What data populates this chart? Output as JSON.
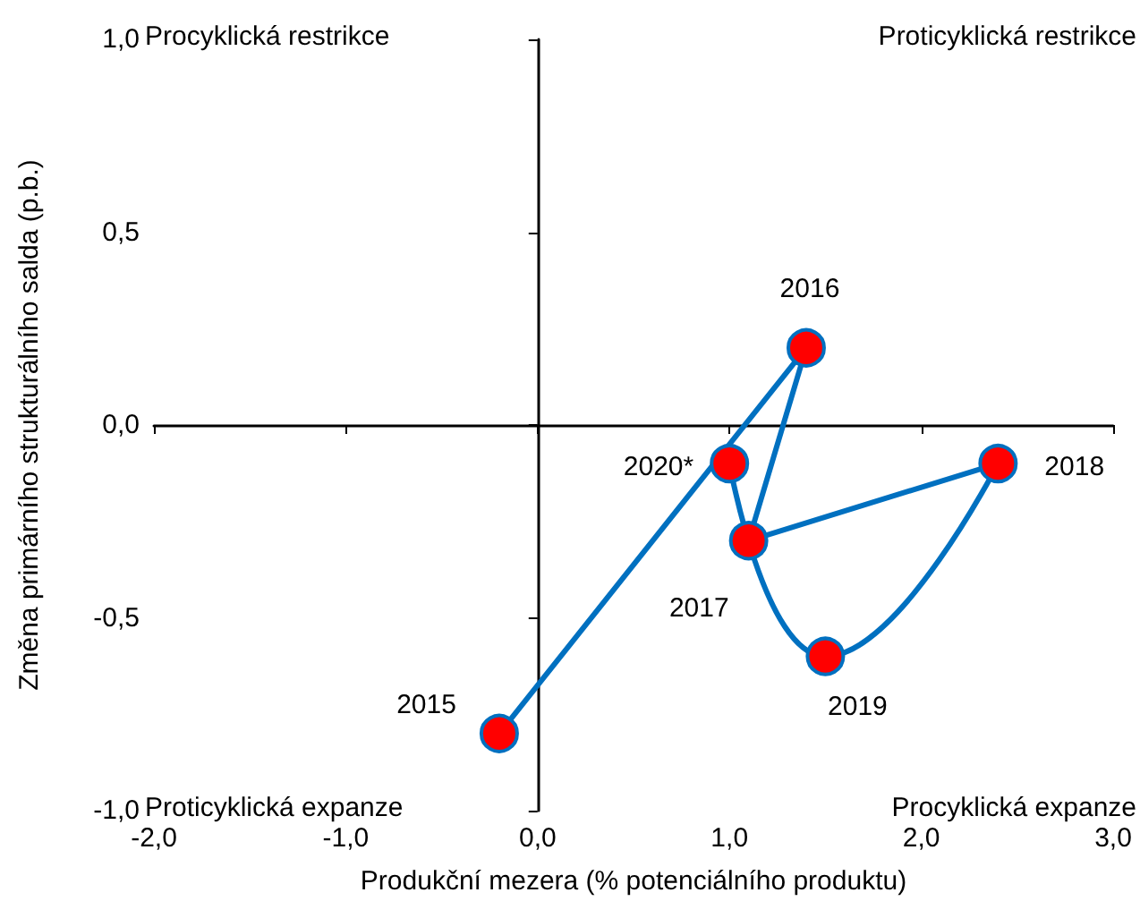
{
  "chart_data": {
    "type": "line",
    "xlabel": "Produkční mezera (% potenciálního produktu)",
    "ylabel": "Změna primárního strukturálního salda (p.b.)",
    "xlim": [
      -2,
      3
    ],
    "xticks": [
      {
        "value": -2,
        "label": "-2,0"
      },
      {
        "value": -1,
        "label": "-1,0"
      },
      {
        "value": 0,
        "label": "0,0"
      },
      {
        "value": 1,
        "label": "1,0"
      },
      {
        "value": 2,
        "label": "2,0"
      },
      {
        "value": 3,
        "label": "3,0"
      }
    ],
    "ylim": [
      -1,
      1
    ],
    "yticks": [
      {
        "value": -1,
        "label": "-1,0"
      },
      {
        "value": -0.5,
        "label": "-0,5"
      },
      {
        "value": 0,
        "label": "0,0"
      },
      {
        "value": 0.5,
        "label": "0,5"
      },
      {
        "value": 1,
        "label": "1,0"
      }
    ],
    "marker": "circle",
    "line_style": "solid",
    "series": [
      {
        "color": "#0070c0",
        "colors": [
          "#ff0000",
          "#ff0000",
          "#ff0000",
          "#ff0000",
          "#ff0000",
          "#ff0000"
        ],
        "x": [
          -0.2,
          1.4,
          1.1,
          2.4,
          1.5,
          1.0
        ],
        "values": [
          -0.8,
          0.2,
          -0.3,
          -0.1,
          -0.6,
          -0.1
        ]
      }
    ],
    "annotations": [
      "Procyklická restrikce",
      "Proticyklická restrikce",
      "Proticyklická expanze",
      "Procyklická expanze",
      {
        "text": "2015",
        "x": -0.2,
        "y": -0.8
      },
      {
        "text": "2016",
        "x": 1.4,
        "y": 0.2
      },
      {
        "text": "2017",
        "x": 1.1,
        "y": -0.3
      },
      {
        "text": "2018",
        "x": 2.4,
        "y": -0.1
      },
      {
        "text": "2019",
        "x": 1.5,
        "y": -0.6
      },
      {
        "text": "2020*",
        "x": 1.0,
        "y": -0.1
      }
    ]
  }
}
